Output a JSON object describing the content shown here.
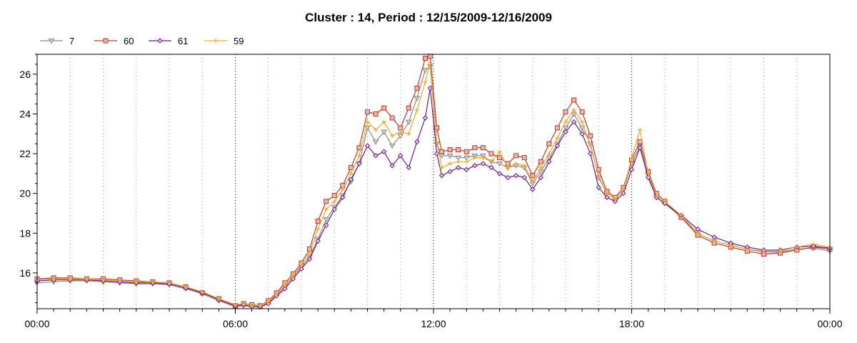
{
  "chart_data": {
    "type": "line",
    "title": "Cluster : 14, Period : 12/15/2009-12/16/2009",
    "xlabel": "",
    "ylabel": "",
    "x_range_hours": [
      0,
      24
    ],
    "ylim": [
      14.2,
      27.0
    ],
    "x_tick_labels": [
      "00:00",
      "06:00",
      "12:00",
      "18:00",
      "00:00"
    ],
    "y_ticks": [
      16,
      18,
      20,
      22,
      24,
      26
    ],
    "grid": "vertical dotted",
    "legend_placement": "top-left",
    "x_hours": [
      0,
      0.5,
      1,
      1.5,
      2,
      2.5,
      3,
      3.5,
      4,
      4.5,
      5,
      5.5,
      6,
      6.25,
      6.5,
      6.75,
      7,
      7.25,
      7.5,
      7.75,
      8,
      8.25,
      8.5,
      8.75,
      9,
      9.25,
      9.5,
      9.75,
      10,
      10.25,
      10.5,
      10.75,
      11,
      11.25,
      11.5,
      11.75,
      11.9,
      12.1,
      12.25,
      12.5,
      12.75,
      13,
      13.25,
      13.5,
      13.75,
      14,
      14.25,
      14.5,
      14.75,
      15,
      15.25,
      15.5,
      15.75,
      16,
      16.25,
      16.5,
      16.75,
      17,
      17.25,
      17.5,
      17.75,
      18,
      18.25,
      18.5,
      18.75,
      19,
      19.5,
      20,
      20.5,
      21,
      21.5,
      22,
      22.5,
      23,
      23.5,
      24
    ],
    "series": [
      {
        "name": "7",
        "color": "#8c8c8c",
        "marker": "triangle-down",
        "values": [
          15.5,
          15.55,
          15.6,
          15.6,
          15.55,
          15.5,
          15.45,
          15.45,
          15.4,
          15.2,
          14.95,
          14.6,
          14.3,
          14.35,
          14.3,
          14.3,
          14.5,
          14.9,
          15.3,
          15.8,
          16.3,
          16.8,
          17.7,
          18.7,
          19.3,
          19.9,
          20.6,
          21.5,
          23.3,
          22.6,
          23.1,
          22.4,
          22.9,
          23.6,
          24.8,
          26.2,
          26.4,
          22.5,
          21.9,
          21.9,
          21.8,
          21.8,
          21.9,
          21.9,
          21.6,
          21.5,
          21.3,
          21.4,
          21.3,
          20.5,
          21.1,
          21.8,
          22.5,
          23.3,
          24.0,
          23.3,
          22.5,
          20.8,
          20.0,
          19.7,
          20.2,
          21.5,
          22.4,
          20.9,
          19.8,
          19.5,
          18.8,
          18.0,
          17.6,
          17.4,
          17.2,
          17.05,
          17.05,
          17.2,
          17.25,
          17.1
        ]
      },
      {
        "name": "60",
        "color": "#c0392b",
        "marker": "square",
        "values": [
          15.7,
          15.75,
          15.75,
          15.7,
          15.7,
          15.65,
          15.6,
          15.55,
          15.5,
          15.3,
          15.0,
          14.7,
          14.35,
          14.45,
          14.4,
          14.35,
          14.6,
          15.0,
          15.5,
          15.95,
          16.5,
          17.2,
          18.6,
          19.6,
          19.9,
          20.4,
          21.3,
          22.3,
          24.1,
          24.0,
          24.3,
          23.8,
          23.3,
          24.3,
          25.3,
          26.8,
          26.9,
          23.3,
          22.1,
          22.2,
          22.2,
          22.1,
          22.3,
          22.3,
          22.0,
          21.8,
          21.5,
          21.9,
          21.8,
          20.9,
          21.6,
          22.5,
          23.3,
          24.1,
          24.7,
          24.1,
          22.9,
          21.2,
          20.1,
          19.8,
          20.3,
          21.7,
          22.6,
          21.1,
          20.0,
          19.6,
          18.8,
          17.9,
          17.5,
          17.3,
          17.1,
          16.95,
          17.0,
          17.15,
          17.3,
          17.2
        ]
      },
      {
        "name": "61",
        "color": "#6a1b8a",
        "marker": "diamond",
        "values": [
          15.6,
          15.65,
          15.65,
          15.65,
          15.6,
          15.55,
          15.5,
          15.5,
          15.45,
          15.25,
          15.0,
          14.65,
          14.35,
          14.4,
          14.3,
          14.3,
          14.45,
          14.85,
          15.2,
          15.7,
          16.2,
          16.7,
          17.6,
          18.4,
          19.2,
          19.8,
          20.7,
          21.5,
          22.4,
          21.9,
          22.1,
          21.4,
          21.9,
          21.3,
          22.6,
          23.8,
          25.3,
          22.0,
          20.9,
          21.1,
          21.3,
          21.2,
          21.4,
          21.5,
          21.3,
          21.0,
          20.8,
          20.9,
          20.8,
          20.2,
          20.8,
          21.6,
          22.4,
          23.1,
          23.6,
          23.0,
          22.0,
          20.3,
          19.8,
          19.6,
          20.0,
          21.2,
          22.3,
          20.8,
          19.8,
          19.5,
          18.9,
          18.2,
          17.8,
          17.5,
          17.3,
          17.15,
          17.15,
          17.3,
          17.35,
          17.25
        ]
      },
      {
        "name": "59",
        "color": "#f5a623",
        "marker": "plus",
        "values": [
          15.65,
          15.7,
          15.7,
          15.7,
          15.65,
          15.6,
          15.55,
          15.55,
          15.5,
          15.3,
          15.05,
          14.7,
          14.4,
          14.45,
          14.35,
          14.35,
          14.55,
          14.95,
          15.4,
          15.85,
          16.4,
          17.0,
          18.2,
          19.2,
          19.6,
          20.2,
          21.0,
          21.9,
          23.6,
          23.2,
          23.6,
          22.9,
          23.1,
          23.0,
          24.2,
          25.6,
          26.6,
          22.6,
          21.3,
          21.5,
          21.6,
          21.6,
          21.8,
          21.8,
          21.6,
          22.1,
          21.3,
          21.5,
          21.4,
          20.6,
          21.3,
          22.0,
          22.8,
          23.6,
          24.2,
          23.6,
          22.4,
          20.9,
          20.0,
          19.7,
          20.2,
          21.8,
          23.2,
          21.0,
          19.9,
          19.6,
          18.9,
          18.0,
          17.6,
          17.4,
          17.2,
          17.1,
          17.1,
          17.3,
          17.45,
          17.3
        ]
      }
    ]
  }
}
